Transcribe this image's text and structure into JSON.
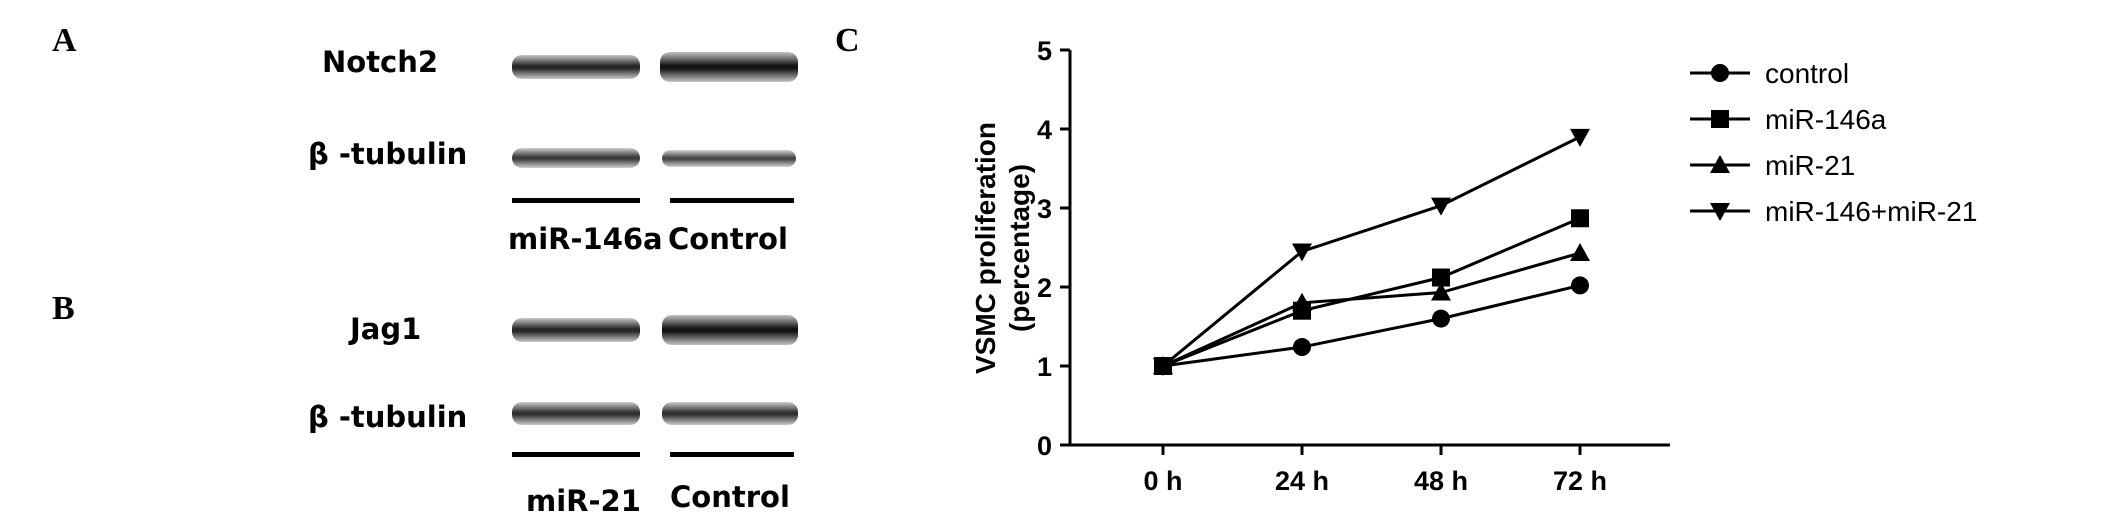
{
  "panels": {
    "a": {
      "letter": "A",
      "row1": "Notch2",
      "row2": "β -tubulin",
      "lane1": "miR-146a",
      "lane2": "Control"
    },
    "b": {
      "letter": "B",
      "row1": "Jag1",
      "row2": "β -tubulin",
      "lane1": "miR-21",
      "lane2": "Control"
    },
    "c": {
      "letter": "C"
    }
  },
  "chart_data": {
    "type": "line",
    "title": "",
    "xlabel": "",
    "ylabel": "VSMC proliferation\n(percentage)",
    "ylabel_line1": "VSMC proliferation",
    "ylabel_line2": "(percentage)",
    "categories": [
      "0 h",
      "24 h",
      "48 h",
      "72 h"
    ],
    "ylim": [
      0,
      5
    ],
    "yticks": [
      "0",
      "1",
      "2",
      "3",
      "4",
      "5"
    ],
    "legend_position": "right",
    "grid": false,
    "series": [
      {
        "name": "control",
        "marker": "circle",
        "values": [
          1.0,
          1.24,
          1.6,
          2.02
        ]
      },
      {
        "name": "miR-146a",
        "marker": "square",
        "values": [
          1.0,
          1.7,
          2.12,
          2.87
        ]
      },
      {
        "name": "miR-21",
        "marker": "triangle-up",
        "values": [
          1.0,
          1.8,
          1.93,
          2.43
        ]
      },
      {
        "name": "miR-146+miR-21",
        "marker": "triangle-down",
        "values": [
          1.0,
          2.45,
          3.03,
          3.9
        ]
      }
    ]
  }
}
